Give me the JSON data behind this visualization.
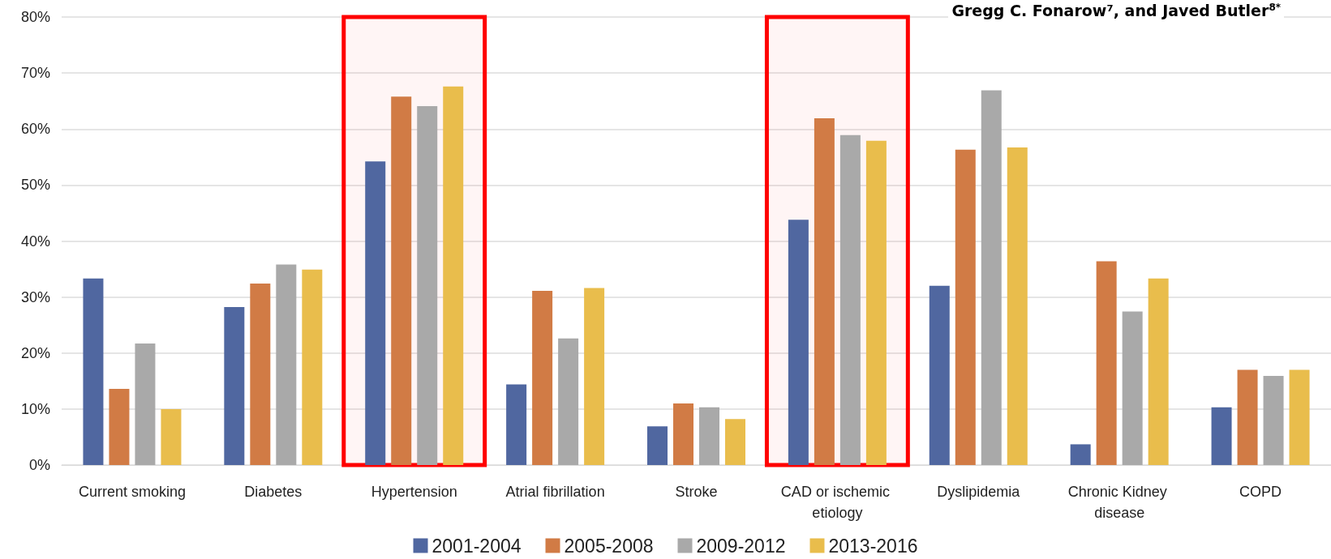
{
  "chart_data": {
    "type": "bar",
    "categories": [
      "Current smoking",
      "Diabetes",
      "Hypertension",
      "Atrial fibrillation",
      "Stroke",
      "CAD or ischemic etiology",
      "Dyslipidemia",
      "Chronic Kidney disease",
      "COPD"
    ],
    "series": [
      {
        "name": "2001-2004",
        "color": "#5067a0",
        "values": [
          33.3,
          28.2,
          54.2,
          14.4,
          6.9,
          43.8,
          32.0,
          3.7,
          10.3
        ]
      },
      {
        "name": "2005-2008",
        "color": "#d17b45",
        "values": [
          13.6,
          32.4,
          65.8,
          31.1,
          11.0,
          61.9,
          56.3,
          36.4,
          17.0
        ]
      },
      {
        "name": "2009-2012",
        "color": "#a9a9a9",
        "values": [
          21.7,
          35.8,
          64.1,
          22.6,
          10.3,
          58.9,
          66.9,
          27.4,
          15.9
        ]
      },
      {
        "name": "2013-2016",
        "color": "#e9bd4c",
        "values": [
          10.0,
          34.9,
          67.6,
          31.6,
          8.2,
          57.9,
          56.7,
          33.3,
          17.0
        ]
      }
    ],
    "ylim": [
      0,
      80
    ],
    "yticks": [
      {
        "value": 0,
        "label": "0%"
      },
      {
        "value": 10,
        "label": "10%"
      },
      {
        "value": 20,
        "label": "20%"
      },
      {
        "value": 30,
        "label": "30%"
      },
      {
        "value": 40,
        "label": "40%"
      },
      {
        "value": 50,
        "label": "50%"
      },
      {
        "value": 60,
        "label": "60%"
      },
      {
        "value": 70,
        "label": "70%"
      },
      {
        "value": 80,
        "label": "80%"
      }
    ],
    "grid": "y",
    "legend": "bottom",
    "bands": [
      {
        "axis": "x",
        "from": "Hypertension",
        "to": "Hypertension",
        "color": "#ff0000"
      },
      {
        "axis": "x",
        "from": "CAD or ischemic etiology",
        "to": "CAD or ischemic etiology",
        "color": "#ff0000"
      }
    ],
    "annotations": [
      "Gregg C. Fonarow⁷, and Javed Butler$^{8*}$"
    ]
  }
}
